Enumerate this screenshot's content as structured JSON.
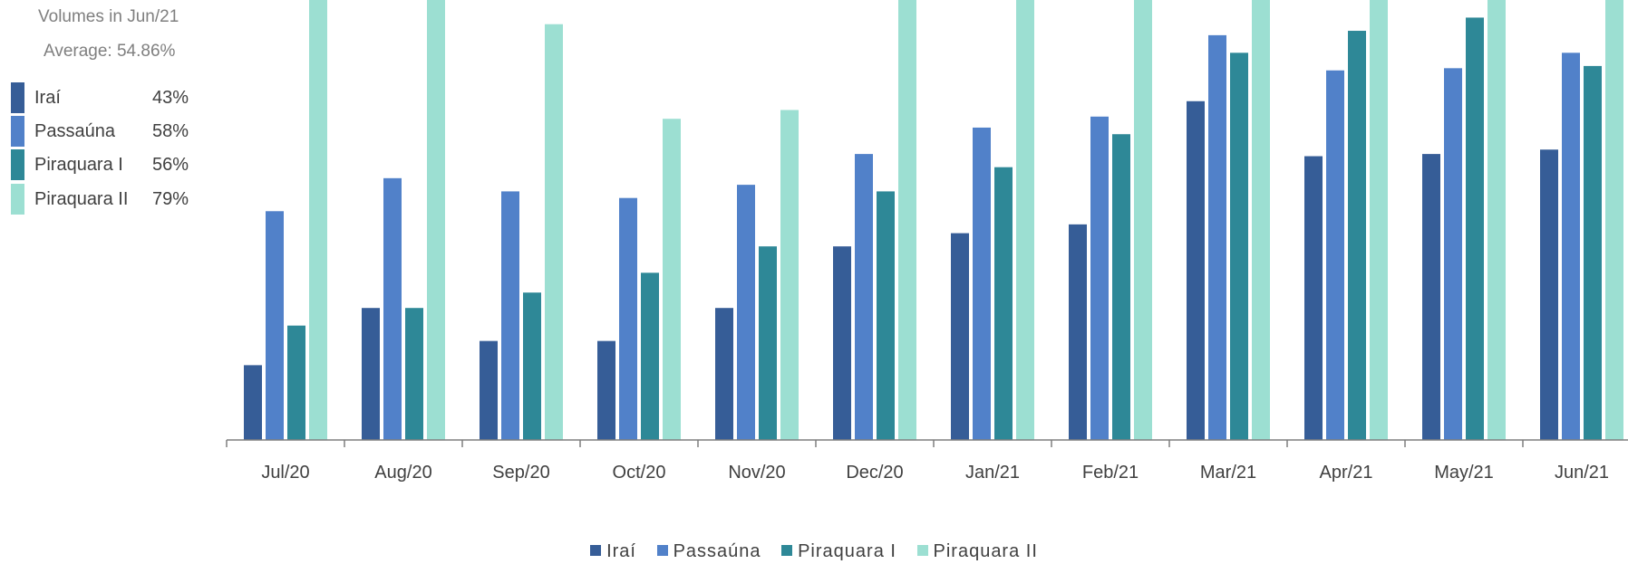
{
  "volumes_panel": {
    "title": "Volumes in Jun/21",
    "average": "Average: 54.86%",
    "items": [
      {
        "name": "Iraí",
        "pct": "43%",
        "color": "#365d97"
      },
      {
        "name": "Passaúna",
        "pct": "58%",
        "color": "#5181c9"
      },
      {
        "name": "Piraquara I",
        "pct": "56%",
        "color": "#2e8897"
      },
      {
        "name": "Piraquara II",
        "pct": "79%",
        "color": "#9cdfd2"
      }
    ]
  },
  "chart_data": {
    "type": "bar",
    "categories": [
      "Jul/20",
      "Aug/20",
      "Sep/20",
      "Oct/20",
      "Nov/20",
      "Dec/20",
      "Jan/21",
      "Feb/21",
      "Mar/21",
      "Apr/21",
      "May/21",
      "Jun/21"
    ],
    "series": [
      {
        "name": "Iraí",
        "color": "#365d97",
        "values": [
          17,
          30,
          22.5,
          22.5,
          30,
          44,
          47,
          49,
          77,
          64.5,
          65,
          66
        ]
      },
      {
        "name": "Passaúna",
        "color": "#5181c9",
        "values": [
          52,
          59.5,
          56.5,
          55,
          58,
          65,
          71,
          73.5,
          92,
          84,
          84.5,
          88
        ]
      },
      {
        "name": "Piraquara I",
        "color": "#2e8897",
        "values": [
          26,
          30,
          33.5,
          38,
          44,
          56.5,
          62,
          69.5,
          88,
          93,
          96,
          85
        ]
      },
      {
        "name": "Piraquara II",
        "color": "#9cdfd2",
        "values": [
          100,
          100,
          94.5,
          73,
          75,
          100,
          100,
          100,
          100,
          100,
          100,
          100
        ]
      }
    ],
    "ylim": [
      0,
      100
    ],
    "legend_position": "bottom",
    "grid": false
  }
}
